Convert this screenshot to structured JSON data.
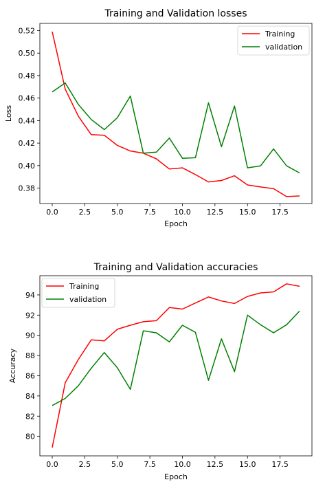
{
  "chart_data": [
    {
      "type": "line",
      "title": "Training and Validation losses",
      "xlabel": "Epoch",
      "ylabel": "Loss",
      "x": [
        0,
        1,
        2,
        3,
        4,
        5,
        6,
        7,
        8,
        9,
        10,
        11,
        12,
        13,
        14,
        15,
        16,
        17,
        18,
        19
      ],
      "xlim": [
        -0.95,
        19.95
      ],
      "ylim": [
        0.3663,
        0.5264
      ],
      "xticks": [
        0.0,
        2.5,
        5.0,
        7.5,
        10.0,
        12.5,
        15.0,
        17.5
      ],
      "xtick_labels": [
        "0.0",
        "2.5",
        "5.0",
        "7.5",
        "10.0",
        "12.5",
        "15.0",
        "17.5"
      ],
      "yticks": [
        0.38,
        0.4,
        0.42,
        0.44,
        0.46,
        0.48,
        0.5,
        0.52
      ],
      "ytick_labels": [
        "0.38",
        "0.40",
        "0.42",
        "0.44",
        "0.46",
        "0.48",
        "0.50",
        "0.52"
      ],
      "legend_position": "top-right",
      "series": [
        {
          "name": "Training",
          "color": "#ff0000",
          "values": [
            0.519,
            0.468,
            0.444,
            0.4275,
            0.427,
            0.418,
            0.413,
            0.411,
            0.406,
            0.397,
            0.398,
            0.392,
            0.3855,
            0.3868,
            0.391,
            0.3828,
            0.381,
            0.3795,
            0.3725,
            0.373
          ]
        },
        {
          "name": "validation",
          "color": "#008000",
          "values": [
            0.4655,
            0.4735,
            0.4545,
            0.441,
            0.432,
            0.4425,
            0.4618,
            0.411,
            0.412,
            0.4245,
            0.4065,
            0.407,
            0.4558,
            0.4168,
            0.453,
            0.398,
            0.3998,
            0.4148,
            0.3998,
            0.3935
          ]
        }
      ]
    },
    {
      "type": "line",
      "title": "Training and Validation accuracies",
      "xlabel": "Epoch",
      "ylabel": "Accuracy",
      "x": [
        0,
        1,
        2,
        3,
        4,
        5,
        6,
        7,
        8,
        9,
        10,
        11,
        12,
        13,
        14,
        15,
        16,
        17,
        18,
        19
      ],
      "xlim": [
        -0.95,
        19.95
      ],
      "ylim": [
        78.07,
        95.9
      ],
      "xticks": [
        0.0,
        2.5,
        5.0,
        7.5,
        10.0,
        12.5,
        15.0,
        17.5
      ],
      "xtick_labels": [
        "0.0",
        "2.5",
        "5.0",
        "7.5",
        "10.0",
        "12.5",
        "15.0",
        "17.5"
      ],
      "yticks": [
        80,
        82,
        84,
        86,
        88,
        90,
        92,
        94
      ],
      "ytick_labels": [
        "80",
        "82",
        "84",
        "86",
        "88",
        "90",
        "92",
        "94"
      ],
      "legend_position": "top-left",
      "series": [
        {
          "name": "Training",
          "color": "#ff0000",
          "values": [
            78.9,
            85.3,
            87.6,
            89.55,
            89.45,
            90.6,
            91.0,
            91.35,
            91.45,
            92.75,
            92.6,
            93.2,
            93.8,
            93.4,
            93.15,
            93.85,
            94.2,
            94.3,
            95.1,
            94.85
          ]
        },
        {
          "name": "validation",
          "color": "#008000",
          "values": [
            83.05,
            83.75,
            85.0,
            86.75,
            88.3,
            86.8,
            84.65,
            90.45,
            90.25,
            89.35,
            91.0,
            90.3,
            85.55,
            89.65,
            86.4,
            92.0,
            91.05,
            90.25,
            91.05,
            92.4
          ]
        }
      ]
    }
  ]
}
